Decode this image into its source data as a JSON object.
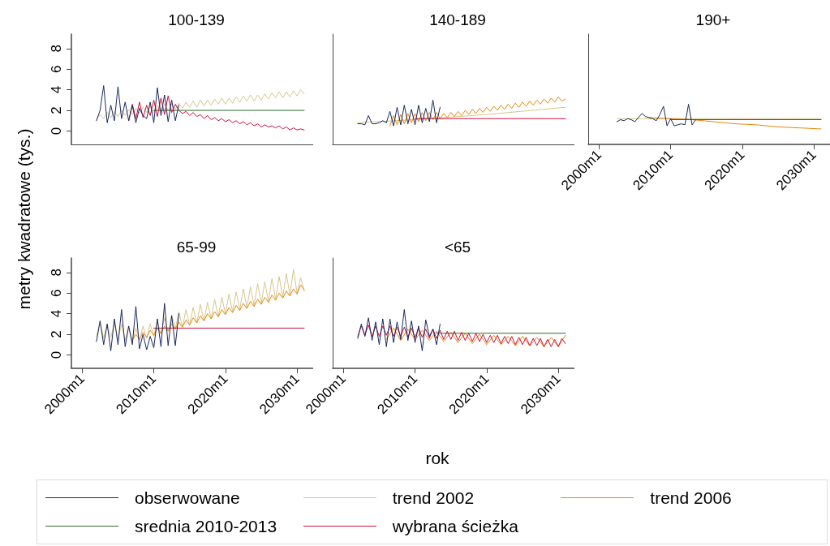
{
  "chart_data": [
    {
      "type": "line",
      "title": "100-139",
      "ylabel": "metry kwadratowe (tys.)",
      "legend": "bottom",
      "marker": "none",
      "grid": false,
      "tick_labels": "y",
      "xlim": [
        "1998-07",
        "2032-04"
      ],
      "ylim": [
        -1.3,
        9.4
      ],
      "yticks": [
        0,
        2,
        4,
        6,
        8
      ],
      "series": [
        {
          "name": "obserwowane",
          "color": "#1b2a5c",
          "x": [
            "2002-01",
            "2002-07",
            "2003-01",
            "2003-07",
            "2004-01",
            "2004-07",
            "2005-01",
            "2005-07",
            "2006-01",
            "2006-07",
            "2007-01",
            "2007-07",
            "2008-01",
            "2008-07",
            "2009-01",
            "2009-07",
            "2010-01",
            "2010-07",
            "2011-01",
            "2011-07",
            "2012-01",
            "2012-07",
            "2013-01",
            "2013-07"
          ],
          "values": [
            1.0,
            2.0,
            4.4,
            0.8,
            2.5,
            1.0,
            4.3,
            1.2,
            2.8,
            1.0,
            2.5,
            0.8,
            2.2,
            1.5,
            1.2,
            2.8,
            0.8,
            4.2,
            1.5,
            3.5,
            0.9,
            3.0,
            1.0,
            2.5
          ]
        },
        {
          "name": "trend 2002",
          "color": "#d6c68c",
          "x": [
            "2002-01",
            "2002-07",
            "2003-01",
            "2003-07",
            "2004-01",
            "2004-07",
            "2005-01",
            "2005-07",
            "2006-01",
            "2006-07",
            "2007-01",
            "2007-07",
            "2008-01",
            "2008-07",
            "2009-01",
            "2009-07",
            "2010-01",
            "2010-07",
            "2011-01",
            "2011-07",
            "2012-01",
            "2012-07",
            "2013-01",
            "2013-07",
            "2014-01",
            "2014-07",
            "2015-01",
            "2015-07",
            "2016-01",
            "2016-07",
            "2017-01",
            "2017-07",
            "2018-01",
            "2018-07",
            "2019-01",
            "2019-07",
            "2020-01",
            "2020-07",
            "2021-01",
            "2021-07",
            "2022-01",
            "2022-07",
            "2023-01",
            "2023-07",
            "2024-01",
            "2024-07",
            "2025-01",
            "2025-07",
            "2026-01",
            "2026-07",
            "2027-01",
            "2027-07",
            "2028-01",
            "2028-07",
            "2029-01",
            "2029-07",
            "2030-01",
            "2030-07",
            "2031-01"
          ],
          "values": [
            1.1,
            1.6,
            1.2,
            1.8,
            1.3,
            1.9,
            1.4,
            2.0,
            1.5,
            2.1,
            1.6,
            2.2,
            1.7,
            2.3,
            1.8,
            2.4,
            1.8,
            2.5,
            1.9,
            2.6,
            2.0,
            2.6,
            2.1,
            2.7,
            2.2,
            2.8,
            2.3,
            2.9,
            2.3,
            3.0,
            2.4,
            3.0,
            2.5,
            3.1,
            2.6,
            3.2,
            2.6,
            3.2,
            2.7,
            3.3,
            2.8,
            3.4,
            2.9,
            3.5,
            2.9,
            3.5,
            3.0,
            3.6,
            3.1,
            3.7,
            3.2,
            3.8,
            3.2,
            3.8,
            3.3,
            3.9,
            3.4,
            4.0,
            3.6
          ]
        },
        {
          "name": "srednia 2010-2013",
          "color": "#2e6b2e",
          "x": [
            "2010-01",
            "2031-01"
          ],
          "values": [
            2.0,
            2.0
          ]
        },
        {
          "name": "wybrana ścieżka",
          "color": "#c8103e",
          "x": [
            "2006-07",
            "2007-01",
            "2007-07",
            "2008-01",
            "2008-07",
            "2009-01",
            "2009-07",
            "2010-01",
            "2010-07",
            "2011-01",
            "2011-07",
            "2012-01",
            "2012-07",
            "2013-01",
            "2013-07",
            "2014-01",
            "2014-07",
            "2015-01",
            "2015-07",
            "2016-01",
            "2016-07",
            "2017-01",
            "2017-07",
            "2018-01",
            "2018-07",
            "2019-01",
            "2019-07",
            "2020-01",
            "2020-07",
            "2021-01",
            "2021-07",
            "2022-01",
            "2022-07",
            "2023-01",
            "2023-07",
            "2024-01",
            "2024-07",
            "2025-01",
            "2025-07",
            "2026-01",
            "2026-07",
            "2027-01",
            "2027-07",
            "2028-01",
            "2028-07",
            "2029-01",
            "2029-07",
            "2030-01",
            "2030-07",
            "2031-01"
          ],
          "values": [
            1.0,
            2.6,
            1.2,
            2.8,
            1.3,
            2.5,
            1.5,
            3.0,
            1.4,
            3.2,
            1.6,
            3.4,
            1.8,
            2.6,
            2.0,
            1.7,
            1.9,
            1.5,
            1.8,
            1.4,
            1.6,
            1.2,
            1.5,
            1.1,
            1.3,
            1.0,
            1.2,
            0.9,
            1.1,
            0.8,
            1.0,
            0.7,
            0.9,
            0.6,
            0.8,
            0.5,
            0.7,
            0.4,
            0.6,
            0.4,
            0.5,
            0.3,
            0.5,
            0.2,
            0.4,
            0.1,
            0.3,
            0.1,
            0.2,
            0.1
          ]
        }
      ]
    },
    {
      "type": "line",
      "title": "140-189",
      "marker": "none",
      "grid": false,
      "tick_labels": false,
      "xlim": [
        "1998-07",
        "2032-04"
      ],
      "ylim": [
        -1.3,
        9.4
      ],
      "series": [
        {
          "name": "obserwowane",
          "color": "#1b2a5c",
          "x": [
            "2002-01",
            "2002-07",
            "2003-01",
            "2003-07",
            "2004-01",
            "2004-07",
            "2005-01",
            "2005-07",
            "2006-01",
            "2006-07",
            "2007-01",
            "2007-07",
            "2008-01",
            "2008-07",
            "2009-01",
            "2009-07",
            "2010-01",
            "2010-07",
            "2011-01",
            "2011-07",
            "2012-01",
            "2012-07",
            "2013-01",
            "2013-07"
          ],
          "values": [
            0.7,
            0.7,
            0.6,
            1.5,
            0.7,
            0.7,
            0.8,
            1.0,
            0.8,
            1.9,
            0.5,
            2.3,
            0.6,
            2.5,
            0.7,
            2.1,
            0.6,
            2.5,
            0.8,
            2.2,
            0.9,
            3.0,
            0.8,
            2.3
          ]
        },
        {
          "name": "trend 2002",
          "color": "#d6c68c",
          "x": [
            "2002-01",
            "2010-01",
            "2020-01",
            "2031-01"
          ],
          "values": [
            0.8,
            1.1,
            1.6,
            2.3
          ]
        },
        {
          "name": "trend 2006",
          "color": "#e8870e",
          "x": [
            "2006-07",
            "2007-01",
            "2007-07",
            "2008-01",
            "2008-07",
            "2009-01",
            "2009-07",
            "2010-01",
            "2010-07",
            "2011-01",
            "2011-07",
            "2012-01",
            "2012-07",
            "2013-01",
            "2013-07",
            "2014-01",
            "2014-07",
            "2015-01",
            "2015-07",
            "2016-01",
            "2016-07",
            "2017-01",
            "2017-07",
            "2018-01",
            "2018-07",
            "2019-01",
            "2019-07",
            "2020-01",
            "2020-07",
            "2021-01",
            "2021-07",
            "2022-01",
            "2022-07",
            "2023-01",
            "2023-07",
            "2024-01",
            "2024-07",
            "2025-01",
            "2025-07",
            "2026-01",
            "2026-07",
            "2027-01",
            "2027-07",
            "2028-01",
            "2028-07",
            "2029-01",
            "2029-07",
            "2030-01",
            "2030-07",
            "2031-01"
          ],
          "values": [
            0.5,
            1.5,
            0.6,
            1.6,
            0.7,
            1.7,
            0.8,
            1.7,
            0.9,
            1.8,
            1.0,
            1.8,
            1.1,
            1.8,
            1.2,
            1.7,
            1.3,
            1.8,
            1.4,
            1.9,
            1.5,
            2.0,
            1.6,
            2.1,
            1.7,
            2.2,
            1.8,
            2.3,
            1.9,
            2.4,
            2.0,
            2.5,
            2.1,
            2.6,
            2.2,
            2.7,
            2.3,
            2.8,
            2.4,
            2.9,
            2.5,
            3.0,
            2.6,
            3.1,
            2.7,
            3.2,
            2.8,
            3.3,
            2.9,
            3.1
          ]
        },
        {
          "name": "wybrana ścieżka",
          "color": "#c8103e",
          "x": [
            "2010-01",
            "2031-01"
          ],
          "values": [
            1.2,
            1.2
          ]
        }
      ]
    },
    {
      "type": "line",
      "title": "190+",
      "marker": "none",
      "grid": false,
      "tick_labels": "x",
      "xlim": [
        "1998-07",
        "2032-04"
      ],
      "xticks": [
        {
          "value": "2000-01",
          "label": "2000m1"
        },
        {
          "value": "2010-01",
          "label": "2010m1"
        },
        {
          "value": "2020-01",
          "label": "2020m1"
        },
        {
          "value": "2030-01",
          "label": "2030m1"
        }
      ],
      "ylim": [
        -1.3,
        9.4
      ],
      "series": [
        {
          "name": "obserwowane",
          "color": "#1b2a5c",
          "x": [
            "2002-07",
            "2003-01",
            "2003-07",
            "2004-01",
            "2004-07",
            "2005-01",
            "2005-07",
            "2006-01",
            "2006-07",
            "2007-01",
            "2007-07",
            "2008-01",
            "2008-07",
            "2009-01",
            "2009-07",
            "2010-01",
            "2010-07",
            "2011-01",
            "2011-07",
            "2012-01",
            "2012-07",
            "2013-01",
            "2013-07"
          ],
          "values": [
            0.9,
            1.1,
            1.0,
            1.2,
            1.1,
            0.9,
            1.3,
            1.7,
            1.4,
            1.3,
            1.2,
            1.0,
            1.6,
            2.4,
            0.5,
            1.2,
            0.5,
            0.6,
            0.7,
            0.6,
            2.6,
            0.6,
            1.1
          ]
        },
        {
          "name": "trend 2002",
          "color": "#d6c68c",
          "x": [
            "2002-07",
            "2031-01"
          ],
          "values": [
            1.2,
            1.2
          ]
        },
        {
          "name": "trend 2006",
          "color": "#e8870e",
          "x": [
            "2007-01",
            "2010-01",
            "2013-01",
            "2016-01",
            "2019-01",
            "2022-01",
            "2025-01",
            "2028-01",
            "2031-01"
          ],
          "values": [
            1.3,
            1.2,
            1.1,
            0.9,
            0.7,
            0.6,
            0.4,
            0.3,
            0.2
          ]
        },
        {
          "name": "wybrana ścieżka",
          "color": "#c8103e",
          "x": [
            "2010-01",
            "2031-01"
          ],
          "values": [
            1.1,
            1.1
          ]
        }
      ]
    },
    {
      "type": "line",
      "title": "65-99",
      "marker": "none",
      "grid": false,
      "xlim": [
        "1998-07",
        "2032-04"
      ],
      "xticks": [
        {
          "value": "2000-01",
          "label": "2000m1"
        },
        {
          "value": "2010-01",
          "label": "2010m1"
        },
        {
          "value": "2020-01",
          "label": "2020m1"
        },
        {
          "value": "2030-01",
          "label": "2030m1"
        }
      ],
      "ylim": [
        -1.3,
        9.4
      ],
      "yticks": [
        0,
        2,
        4,
        6,
        8
      ],
      "series": [
        {
          "name": "obserwowane",
          "color": "#1b2a5c",
          "x": [
            "2002-01",
            "2002-07",
            "2003-01",
            "2003-07",
            "2004-01",
            "2004-07",
            "2005-01",
            "2005-07",
            "2006-01",
            "2006-07",
            "2007-01",
            "2007-07",
            "2008-01",
            "2008-07",
            "2009-01",
            "2009-07",
            "2010-01",
            "2010-07",
            "2011-01",
            "2011-07",
            "2012-01",
            "2012-07",
            "2013-01",
            "2013-07"
          ],
          "values": [
            1.3,
            3.3,
            1.0,
            3.0,
            0.4,
            3.5,
            1.0,
            4.4,
            0.8,
            2.8,
            1.0,
            4.7,
            0.6,
            2.0,
            0.5,
            1.8,
            0.7,
            3.5,
            0.8,
            5.0,
            0.9,
            3.8,
            0.9,
            4.0
          ]
        },
        {
          "name": "trend 2002",
          "color": "#d6c68c",
          "x": [
            "2002-01",
            "2002-07",
            "2003-01",
            "2003-07",
            "2004-01",
            "2004-07",
            "2005-01",
            "2005-07",
            "2006-01",
            "2006-07",
            "2007-01",
            "2007-07",
            "2008-01",
            "2008-07",
            "2009-01",
            "2009-07",
            "2010-01",
            "2010-07",
            "2011-01",
            "2011-07",
            "2012-01",
            "2012-07",
            "2013-01",
            "2013-07",
            "2014-01",
            "2014-07",
            "2015-01",
            "2015-07",
            "2016-01",
            "2016-07",
            "2017-01",
            "2017-07",
            "2018-01",
            "2018-07",
            "2019-01",
            "2019-07",
            "2020-01",
            "2020-07",
            "2021-01",
            "2021-07",
            "2022-01",
            "2022-07",
            "2023-01",
            "2023-07",
            "2024-01",
            "2024-07",
            "2025-01",
            "2025-07",
            "2026-01",
            "2026-07",
            "2027-01",
            "2027-07",
            "2028-01",
            "2028-07",
            "2029-01",
            "2029-07",
            "2030-01",
            "2030-07",
            "2031-01"
          ],
          "values": [
            1.8,
            3.2,
            1.6,
            3.0,
            1.7,
            3.1,
            1.5,
            3.0,
            1.4,
            2.8,
            1.3,
            2.6,
            1.4,
            2.8,
            1.6,
            3.0,
            1.8,
            3.3,
            2.0,
            3.6,
            2.3,
            3.9,
            2.5,
            4.2,
            2.7,
            4.4,
            2.9,
            4.6,
            3.1,
            4.9,
            3.3,
            5.1,
            3.5,
            5.4,
            3.7,
            5.6,
            4.0,
            5.9,
            4.2,
            6.1,
            4.4,
            6.4,
            4.6,
            6.6,
            4.8,
            6.9,
            5.0,
            7.1,
            5.2,
            7.4,
            5.4,
            7.6,
            5.6,
            7.9,
            5.8,
            8.3,
            6.0,
            7.5,
            6.2
          ]
        },
        {
          "name": "trend 2006",
          "color": "#e8870e",
          "x": [
            "2007-01",
            "2007-07",
            "2008-01",
            "2008-07",
            "2009-01",
            "2009-07",
            "2010-01",
            "2010-07",
            "2011-01",
            "2011-07",
            "2012-01",
            "2012-07",
            "2013-01",
            "2013-07",
            "2014-01",
            "2014-07",
            "2015-01",
            "2015-07",
            "2016-01",
            "2016-07",
            "2017-01",
            "2017-07",
            "2018-01",
            "2018-07",
            "2019-01",
            "2019-07",
            "2020-01",
            "2020-07",
            "2021-01",
            "2021-07",
            "2022-01",
            "2022-07",
            "2023-01",
            "2023-07",
            "2024-01",
            "2024-07",
            "2025-01",
            "2025-07",
            "2026-01",
            "2026-07",
            "2027-01",
            "2027-07",
            "2028-01",
            "2028-07",
            "2029-01",
            "2029-07",
            "2030-01",
            "2030-07",
            "2031-01"
          ],
          "values": [
            1.4,
            2.0,
            1.5,
            2.2,
            1.7,
            2.4,
            1.9,
            2.6,
            2.1,
            2.8,
            2.3,
            3.0,
            2.5,
            3.2,
            2.7,
            3.4,
            2.9,
            3.6,
            3.1,
            3.8,
            3.3,
            4.0,
            3.5,
            4.2,
            3.7,
            4.4,
            3.9,
            4.6,
            4.1,
            4.8,
            4.3,
            5.0,
            4.5,
            5.2,
            4.7,
            5.4,
            4.9,
            5.6,
            5.1,
            5.8,
            5.3,
            6.0,
            5.5,
            6.2,
            5.7,
            6.4,
            5.9,
            6.8,
            6.3
          ]
        },
        {
          "name": "wybrana ścieżka",
          "color": "#c8103e",
          "x": [
            "2010-01",
            "2031-01"
          ],
          "values": [
            2.6,
            2.6
          ]
        }
      ]
    },
    {
      "type": "line",
      "title": "<65",
      "xlabel": "rok",
      "marker": "none",
      "grid": false,
      "tick_labels": "x",
      "xlim": [
        "1998-07",
        "2032-04"
      ],
      "xticks": [
        {
          "value": "2000-01",
          "label": "2000m1"
        },
        {
          "value": "2010-01",
          "label": "2010m1"
        },
        {
          "value": "2020-01",
          "label": "2020m1"
        },
        {
          "value": "2030-01",
          "label": "2030m1"
        }
      ],
      "ylim": [
        -1.3,
        9.4
      ],
      "series": [
        {
          "name": "obserwowane",
          "color": "#1b2a5c",
          "x": [
            "2002-01",
            "2002-07",
            "2003-01",
            "2003-07",
            "2004-01",
            "2004-07",
            "2005-01",
            "2005-07",
            "2006-01",
            "2006-07",
            "2007-01",
            "2007-07",
            "2008-01",
            "2008-07",
            "2009-01",
            "2009-07",
            "2010-01",
            "2010-07",
            "2011-01",
            "2011-07",
            "2012-01",
            "2012-07",
            "2013-01",
            "2013-07"
          ],
          "values": [
            1.6,
            3.0,
            1.8,
            3.6,
            1.4,
            3.2,
            1.0,
            3.5,
            0.8,
            3.5,
            1.2,
            3.2,
            1.5,
            4.4,
            1.4,
            3.3,
            1.2,
            2.8,
            0.4,
            3.4,
            1.8,
            2.5,
            1.0,
            3.0
          ]
        },
        {
          "name": "trend 2006",
          "color": "#e8870e",
          "x": [
            "2006-01",
            "2007-01",
            "2008-01",
            "2009-01",
            "2010-01",
            "2011-01",
            "2012-01",
            "2013-01",
            "2014-01",
            "2015-01",
            "2016-01",
            "2017-01",
            "2018-01",
            "2019-01",
            "2020-01",
            "2021-01",
            "2022-01",
            "2023-01",
            "2024-01",
            "2025-01",
            "2026-01",
            "2027-01",
            "2028-01",
            "2029-01",
            "2030-01",
            "2031-01"
          ],
          "values": [
            1.5,
            2.6,
            1.4,
            2.5,
            1.5,
            2.4,
            1.4,
            2.3,
            1.3,
            2.2,
            1.2,
            2.1,
            1.1,
            2.0,
            1.0,
            1.9,
            1.0,
            1.8,
            0.9,
            1.8,
            0.9,
            1.7,
            0.8,
            1.7,
            0.8,
            1.9
          ]
        },
        {
          "name": "srednia 2010-2013",
          "color": "#2e6b2e",
          "x": [
            "2013-01",
            "2031-01"
          ],
          "values": [
            2.1,
            2.1
          ]
        },
        {
          "name": "wybrana ścieżka",
          "color": "#c8103e",
          "x": [
            "2002-01",
            "2002-07",
            "2003-01",
            "2003-07",
            "2004-01",
            "2004-07",
            "2005-01",
            "2005-07",
            "2006-01",
            "2006-07",
            "2007-01",
            "2007-07",
            "2008-01",
            "2008-07",
            "2009-01",
            "2009-07",
            "2010-01",
            "2010-07",
            "2011-01",
            "2011-07",
            "2012-01",
            "2012-07",
            "2013-01",
            "2013-07",
            "2014-01",
            "2014-07",
            "2015-01",
            "2015-07",
            "2016-01",
            "2016-07",
            "2017-01",
            "2017-07",
            "2018-01",
            "2018-07",
            "2019-01",
            "2019-07",
            "2020-01",
            "2020-07",
            "2021-01",
            "2021-07",
            "2022-01",
            "2022-07",
            "2023-01",
            "2023-07",
            "2024-01",
            "2024-07",
            "2025-01",
            "2025-07",
            "2026-01",
            "2026-07",
            "2027-01",
            "2027-07",
            "2028-01",
            "2028-07",
            "2029-01",
            "2029-07",
            "2030-01",
            "2030-07",
            "2031-01"
          ],
          "values": [
            1.8,
            2.8,
            1.9,
            2.9,
            1.8,
            2.8,
            1.8,
            2.8,
            1.9,
            2.8,
            1.8,
            2.7,
            1.8,
            2.7,
            1.7,
            2.6,
            1.7,
            2.6,
            1.7,
            2.5,
            1.6,
            2.5,
            1.6,
            2.4,
            1.5,
            2.3,
            1.5,
            2.3,
            1.4,
            2.2,
            1.4,
            2.1,
            1.3,
            2.1,
            1.3,
            2.0,
            1.2,
            1.9,
            1.2,
            1.9,
            1.1,
            1.8,
            1.1,
            1.8,
            1.0,
            1.7,
            1.0,
            1.7,
            0.9,
            1.6,
            0.9,
            1.6,
            0.8,
            1.5,
            0.8,
            1.5,
            0.8,
            1.6,
            1.1
          ]
        }
      ]
    }
  ]
}
